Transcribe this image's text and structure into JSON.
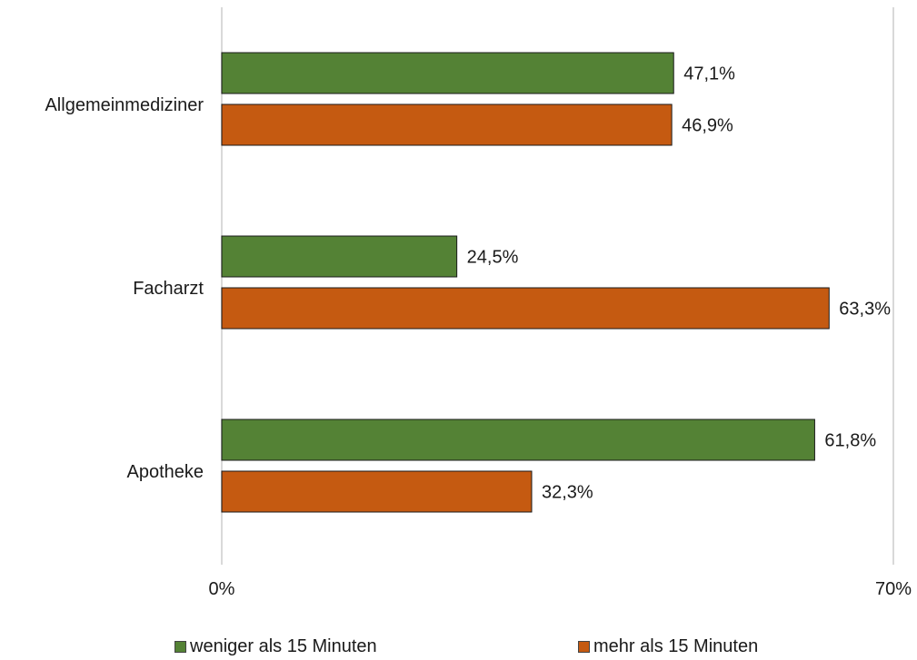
{
  "chart_data": {
    "type": "bar",
    "orientation": "horizontal",
    "categories": [
      "Allgemeinmediziner",
      "Facharzt",
      "Apotheke"
    ],
    "series": [
      {
        "name": "weniger als 15 Minuten",
        "color": "#548235",
        "values": [
          47.1,
          24.5,
          61.8
        ],
        "labels": [
          "47,1%",
          "24,5%",
          "61,8%"
        ]
      },
      {
        "name": "mehr als 15 Minuten",
        "color": "#c55a11",
        "values": [
          46.9,
          63.3,
          32.3
        ],
        "labels": [
          "46,9%",
          "63,3%",
          "32,3%"
        ]
      }
    ],
    "xlim": [
      0,
      70
    ],
    "x_tick_labels": [
      "0%",
      "70%"
    ],
    "grid": true,
    "legend_position": "bottom"
  }
}
